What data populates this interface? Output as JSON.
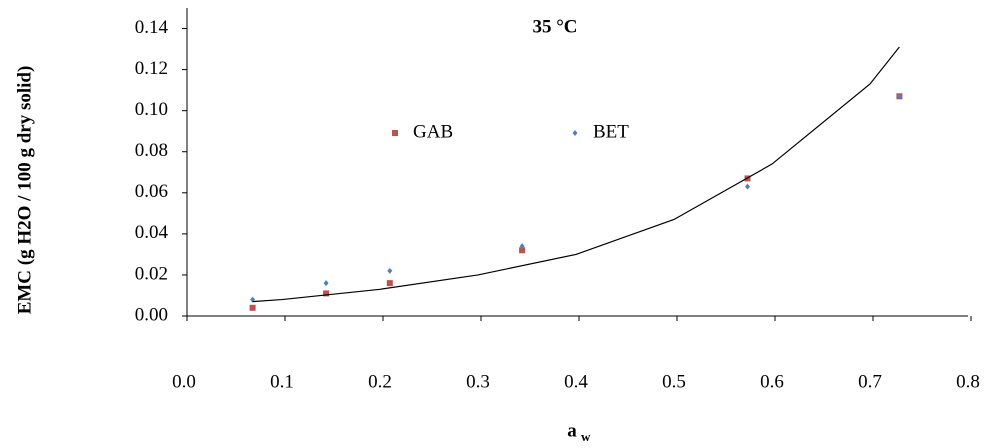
{
  "chart_data": {
    "type": "scatter",
    "title": "35 °C",
    "y_label": "EMC (g H2O / 100 g dry solid)",
    "x_label": "a",
    "x_label_sub": "w",
    "xlim": [
      0,
      0.8
    ],
    "xticks": [
      {
        "value": 0,
        "label": "0.0"
      },
      0.1,
      0.2,
      0.3,
      0.4,
      0.5,
      0.6,
      0.7,
      0.8
    ],
    "ylim": [
      0,
      0.15
    ],
    "yticks": [
      {
        "value": 0,
        "label": "0.00"
      },
      0.02,
      0.04,
      0.06,
      0.08,
      {
        "value": 0.1,
        "label": "0.10"
      },
      0.12,
      0.14
    ],
    "legend": "center",
    "series": [
      {
        "name": "GAB",
        "color": "#c0504d",
        "marker": "square",
        "x": [
          0.07,
          0.145,
          0.21,
          0.345,
          0.575,
          0.73
        ],
        "values": [
          0.004,
          0.011,
          0.016,
          0.032,
          0.067,
          0.107
        ]
      },
      {
        "name": "BET",
        "color": "#4f81bd",
        "marker": "diamond",
        "x": [
          0.07,
          0.145,
          0.21,
          0.345,
          0.575,
          0.73
        ],
        "values": [
          0.008,
          0.016,
          0.022,
          0.034,
          0.063,
          0.107
        ]
      },
      {
        "color": "#000000",
        "marker": "line",
        "x": [
          0.07,
          0.1,
          0.2,
          0.3,
          0.4,
          0.5,
          0.6,
          0.7,
          0.73
        ],
        "values": [
          0.007,
          0.008,
          0.013,
          0.02,
          0.03,
          0.047,
          0.074,
          0.113,
          0.131
        ]
      }
    ]
  }
}
